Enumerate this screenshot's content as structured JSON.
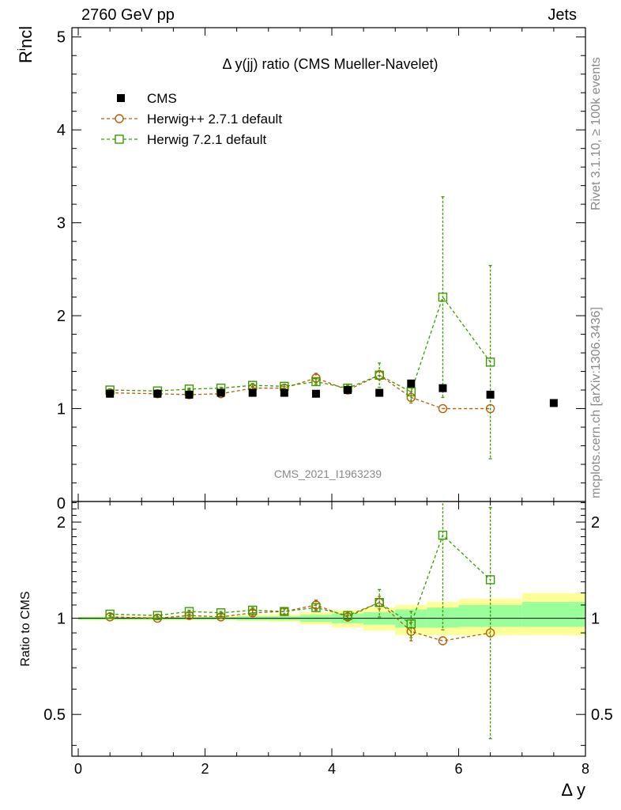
{
  "header": {
    "left": "2760 GeV pp",
    "right": "Jets"
  },
  "side_labels": {
    "rivet": "Rivet 3.1.10, ≥ 100k events",
    "mcplots": "mcplots.cern.ch [arXiv:1306.3436]"
  },
  "colors": {
    "cms": "#000000",
    "herwigpp": "#b85c00",
    "herwig7": "#3a9a00",
    "band_yellow": "#ffff99",
    "band_green": "#99ff99",
    "watermark": "#888888"
  },
  "chart_data": [
    {
      "type": "scatter",
      "title": "Δ y(jj) ratio (CMS Mueller-Navelet)",
      "ylabel": "R^i_ncl",
      "watermark": "CMS_2021_I1963239",
      "xlim": [
        -0.1,
        8.0
      ],
      "ylim": [
        0,
        5.1
      ],
      "yticks": [
        1,
        2,
        3,
        4,
        5
      ],
      "ytick_labels": [
        "1",
        "2",
        "3",
        "4",
        "5"
      ],
      "ytick_zero_label": "0",
      "legend_placement": "top-left",
      "series": [
        {
          "name": "CMS",
          "style": "filled-square",
          "x": [
            0.5,
            1.25,
            1.75,
            2.25,
            2.75,
            3.25,
            3.75,
            4.25,
            4.75,
            5.25,
            5.75,
            6.5,
            7.5
          ],
          "y": [
            1.16,
            1.16,
            1.15,
            1.17,
            1.17,
            1.17,
            1.16,
            1.2,
            1.17,
            1.27,
            1.22,
            1.15,
            1.06
          ]
        },
        {
          "name": "Herwig++ 2.7.1 default",
          "style": "open-circle-dashed",
          "x": [
            0.5,
            1.25,
            1.75,
            2.25,
            2.75,
            3.25,
            3.75,
            4.25,
            4.75,
            5.25,
            5.75,
            6.5
          ],
          "y": [
            1.17,
            1.16,
            1.15,
            1.16,
            1.22,
            1.22,
            1.33,
            1.2,
            1.36,
            1.12,
            1.0,
            1.0
          ],
          "err": [
            0.01,
            0.01,
            0.01,
            0.01,
            0.02,
            0.02,
            0.05,
            0.03,
            0.05,
            0.06,
            0.0,
            0.0
          ]
        },
        {
          "name": "Herwig 7.2.1 default",
          "style": "open-square-dashed",
          "x": [
            0.5,
            1.25,
            1.75,
            2.25,
            2.75,
            3.25,
            3.75,
            4.25,
            4.75,
            5.25,
            5.75,
            6.5
          ],
          "y": [
            1.2,
            1.19,
            1.21,
            1.22,
            1.25,
            1.24,
            1.29,
            1.22,
            1.36,
            1.18,
            2.2,
            1.5
          ],
          "err": [
            0.01,
            0.01,
            0.01,
            0.01,
            0.02,
            0.02,
            0.03,
            0.03,
            0.13,
            0.1,
            1.08,
            1.04
          ]
        }
      ]
    },
    {
      "type": "scatter",
      "xlabel": "Δ y",
      "ylabel": "Ratio to CMS",
      "xlim": [
        -0.1,
        8.0
      ],
      "ylim": [
        0.37,
        2.32
      ],
      "xticks": [
        0,
        2,
        4,
        6,
        8
      ],
      "xtick_labels": [
        "0",
        "2",
        "4",
        "6",
        "8"
      ],
      "yticks": [
        0.5,
        1,
        2
      ],
      "ytick_labels": [
        "0.5",
        "1",
        "2"
      ],
      "bands": {
        "edges": [
          0,
          1,
          1.5,
          2,
          2.5,
          3,
          3.5,
          4,
          4.5,
          5,
          5.5,
          6,
          7,
          8
        ],
        "yellow_low": [
          0.985,
          0.985,
          0.985,
          0.985,
          0.98,
          0.975,
          0.955,
          0.935,
          0.915,
          0.885,
          0.885,
          0.885,
          0.885
        ],
        "yellow_high": [
          1.015,
          1.015,
          1.02,
          1.02,
          1.025,
          1.03,
          1.045,
          1.06,
          1.08,
          1.1,
          1.125,
          1.15,
          1.2
        ],
        "green_low": [
          0.99,
          0.99,
          0.99,
          0.99,
          0.985,
          0.985,
          0.975,
          0.965,
          0.955,
          0.935,
          0.935,
          0.94,
          0.94
        ],
        "green_high": [
          1.01,
          1.01,
          1.01,
          1.01,
          1.015,
          1.015,
          1.025,
          1.035,
          1.045,
          1.065,
          1.08,
          1.1,
          1.125
        ]
      },
      "series": [
        {
          "name": "Herwig++ 2.7.1 default",
          "style": "open-circle-dashed",
          "x": [
            0.5,
            1.25,
            1.75,
            2.25,
            2.75,
            3.25,
            3.75,
            4.25,
            4.75,
            5.25,
            5.75,
            6.5
          ],
          "y": [
            1.01,
            1.0,
            1.02,
            1.01,
            1.04,
            1.05,
            1.1,
            1.01,
            1.12,
            0.91,
            0.85,
            0.9
          ],
          "err": [
            0.01,
            0.01,
            0.01,
            0.01,
            0.02,
            0.02,
            0.04,
            0.03,
            0.05,
            0.06,
            0.0,
            0.0
          ]
        },
        {
          "name": "Herwig 7.2.1 default",
          "style": "open-square-dashed",
          "x": [
            0.5,
            1.25,
            1.75,
            2.25,
            2.75,
            3.25,
            3.75,
            4.25,
            4.75,
            5.25,
            5.75,
            6.5
          ],
          "y": [
            1.03,
            1.02,
            1.05,
            1.04,
            1.06,
            1.05,
            1.08,
            1.02,
            1.12,
            0.96,
            1.82,
            1.32
          ],
          "err": [
            0.01,
            0.01,
            0.01,
            0.01,
            0.02,
            0.02,
            0.03,
            0.03,
            0.11,
            0.09,
            0.9,
            0.9
          ]
        }
      ]
    }
  ]
}
